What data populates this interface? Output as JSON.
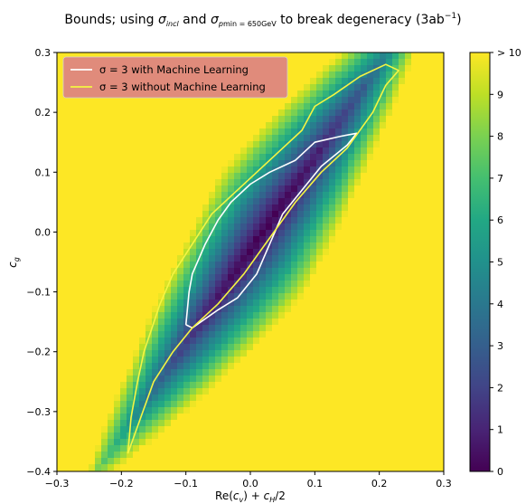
{
  "chart_data": {
    "type": "heatmap",
    "title_prefix": "Bounds; using ",
    "title_suffix": " to break degeneracy (3ab",
    "title_sigma_incl": "incl",
    "title_pt_sub": "p",
    "title_pt_label": "min = 650GeV",
    "title_unit_exp": "−1",
    "title_close": ")",
    "xlabel": "Re(c_v) + c_H/2",
    "ylabel": "c_g",
    "xlim": [
      -0.3,
      0.3
    ],
    "ylim": [
      -0.4,
      0.3
    ],
    "x_ticks": [
      "−0.3",
      "−0.2",
      "−0.1",
      "0.0",
      "0.1",
      "0.2",
      "0.3"
    ],
    "x_tick_values": [
      -0.3,
      -0.2,
      -0.1,
      0.0,
      0.1,
      0.2,
      0.3
    ],
    "y_ticks": [
      "−0.4",
      "−0.3",
      "−0.2",
      "−0.1",
      "0.0",
      "0.1",
      "0.2",
      "0.3"
    ],
    "y_tick_values": [
      -0.4,
      -0.3,
      -0.2,
      -0.1,
      0.0,
      0.1,
      0.2,
      0.3
    ],
    "colorbar": {
      "range": [
        0,
        10
      ],
      "ticks": [
        "0",
        "1",
        "2",
        "3",
        "4",
        "5",
        "6",
        "7",
        "8",
        "9",
        "> 10"
      ],
      "tick_values": [
        0,
        1,
        2,
        3,
        4,
        5,
        6,
        7,
        8,
        9,
        10
      ],
      "colormap": "viridis"
    },
    "valley": {
      "center_x": 0.02,
      "center_y": 0.0,
      "slope": 1.55,
      "note": "significance surface, minimum along diagonal"
    },
    "legend": {
      "placement": "top-left",
      "background": "#e08b7b",
      "items": [
        {
          "label": "σ = 3 with Machine Learning",
          "color": "#ffffff"
        },
        {
          "label": "σ = 3 without Machine Learning",
          "color": "#f5f542"
        }
      ]
    },
    "series": [
      {
        "label_ref": 0,
        "color": "#ffffff",
        "points": [
          [
            -0.1,
            -0.155
          ],
          [
            -0.09,
            -0.16
          ],
          [
            -0.07,
            -0.145
          ],
          [
            -0.05,
            -0.13
          ],
          [
            -0.02,
            -0.11
          ],
          [
            0.01,
            -0.07
          ],
          [
            0.03,
            -0.02
          ],
          [
            0.05,
            0.03
          ],
          [
            0.08,
            0.07
          ],
          [
            0.11,
            0.11
          ],
          [
            0.15,
            0.145
          ],
          [
            0.165,
            0.165
          ],
          [
            0.14,
            0.16
          ],
          [
            0.1,
            0.15
          ],
          [
            0.07,
            0.12
          ],
          [
            0.03,
            0.1
          ],
          [
            0.0,
            0.08
          ],
          [
            -0.03,
            0.05
          ],
          [
            -0.05,
            0.02
          ],
          [
            -0.07,
            -0.02
          ],
          [
            -0.09,
            -0.07
          ],
          [
            -0.095,
            -0.1
          ],
          [
            -0.1,
            -0.155
          ]
        ]
      },
      {
        "label_ref": 1,
        "color": "#f5f542",
        "points": [
          [
            -0.19,
            -0.37
          ],
          [
            -0.17,
            -0.31
          ],
          [
            -0.15,
            -0.25
          ],
          [
            -0.12,
            -0.2
          ],
          [
            -0.09,
            -0.16
          ],
          [
            -0.05,
            -0.12
          ],
          [
            -0.01,
            -0.07
          ],
          [
            0.03,
            -0.01
          ],
          [
            0.07,
            0.05
          ],
          [
            0.11,
            0.1
          ],
          [
            0.15,
            0.14
          ],
          [
            0.19,
            0.2
          ],
          [
            0.21,
            0.245
          ],
          [
            0.23,
            0.27
          ],
          [
            0.21,
            0.28
          ],
          [
            0.17,
            0.26
          ],
          [
            0.13,
            0.23
          ],
          [
            0.1,
            0.21
          ],
          [
            0.08,
            0.17
          ],
          [
            0.05,
            0.14
          ],
          [
            0.01,
            0.1
          ],
          [
            -0.03,
            0.06
          ],
          [
            -0.06,
            0.03
          ],
          [
            -0.09,
            -0.02
          ],
          [
            -0.12,
            -0.07
          ],
          [
            -0.14,
            -0.12
          ],
          [
            -0.165,
            -0.2
          ],
          [
            -0.175,
            -0.25
          ],
          [
            -0.185,
            -0.31
          ],
          [
            -0.19,
            -0.37
          ]
        ]
      }
    ]
  }
}
